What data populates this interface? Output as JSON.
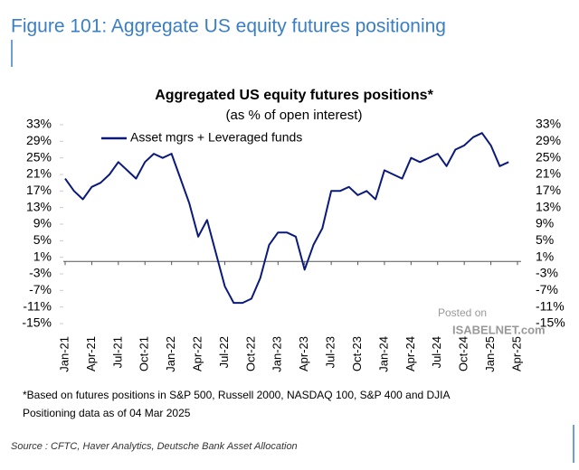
{
  "figure_title": "Figure 101: Aggregate US equity futures positioning",
  "chart_data": {
    "type": "line",
    "title": "Aggregated US equity futures positions*",
    "subtitle": "(as % of open interest)",
    "x": [
      "Jan-21",
      "Feb-21",
      "Mar-21",
      "Apr-21",
      "May-21",
      "Jun-21",
      "Jul-21",
      "Aug-21",
      "Sep-21",
      "Oct-21",
      "Nov-21",
      "Dec-21",
      "Jan-22",
      "Feb-22",
      "Mar-22",
      "Apr-22",
      "May-22",
      "Jun-22",
      "Jul-22",
      "Aug-22",
      "Sep-22",
      "Oct-22",
      "Nov-22",
      "Dec-22",
      "Jan-23",
      "Feb-23",
      "Mar-23",
      "Apr-23",
      "May-23",
      "Jun-23",
      "Jul-23",
      "Aug-23",
      "Sep-23",
      "Oct-23",
      "Nov-23",
      "Dec-23",
      "Jan-24",
      "Feb-24",
      "Mar-24",
      "Apr-24",
      "May-24",
      "Jun-24",
      "Jul-24",
      "Aug-24",
      "Sep-24",
      "Oct-24",
      "Nov-24",
      "Dec-24",
      "Jan-25",
      "Feb-25",
      "Mar-25"
    ],
    "series": [
      {
        "name": "Asset mgrs + Leveraged funds",
        "color": "#0b1a7a",
        "values": [
          20,
          17,
          15,
          18,
          19,
          21,
          24,
          22,
          20,
          24,
          26,
          25,
          26,
          20,
          14,
          6,
          10,
          2,
          -6,
          -10,
          -10,
          -9,
          -4,
          4,
          7,
          7,
          6,
          -2,
          4,
          8,
          17,
          17,
          18,
          16,
          17,
          15,
          22,
          21,
          20,
          25,
          24,
          25,
          26,
          23,
          27,
          28,
          30,
          31,
          28,
          23,
          24
        ]
      }
    ],
    "xticks": [
      "Jan-21",
      "Apr-21",
      "Jul-21",
      "Oct-21",
      "Jan-22",
      "Apr-22",
      "Jul-22",
      "Oct-22",
      "Jan-23",
      "Apr-23",
      "Jul-23",
      "Oct-23",
      "Jan-24",
      "Apr-24",
      "Jul-24",
      "Oct-24",
      "Jan-25",
      "Apr-25"
    ],
    "ylim": [
      -15,
      33
    ],
    "yticks": [
      {
        "value": 33,
        "label": "33%"
      },
      {
        "value": 29,
        "label": "29%"
      },
      {
        "value": 25,
        "label": "25%"
      },
      {
        "value": 21,
        "label": "21%"
      },
      {
        "value": 17,
        "label": "17%"
      },
      {
        "value": 13,
        "label": "13%"
      },
      {
        "value": 9,
        "label": "9%"
      },
      {
        "value": 5,
        "label": "5%"
      },
      {
        "value": 1,
        "label": "1%"
      },
      {
        "value": -3,
        "label": "-3%"
      },
      {
        "value": -7,
        "label": "-7%"
      },
      {
        "value": -11,
        "label": "-11%"
      },
      {
        "value": -15,
        "label": "-15%"
      }
    ],
    "footnote": "*Based on futures positions in S&P 500, Russell 2000, NASDAQ 100, S&P 400 and DJIA",
    "note": "Positioning data as of 04 Mar 2025",
    "source": "Source : CFTC, Haver Analytics, Deutsche Bank Asset Allocation",
    "watermark": [
      "Posted on",
      "ISABELNET.com"
    ]
  }
}
